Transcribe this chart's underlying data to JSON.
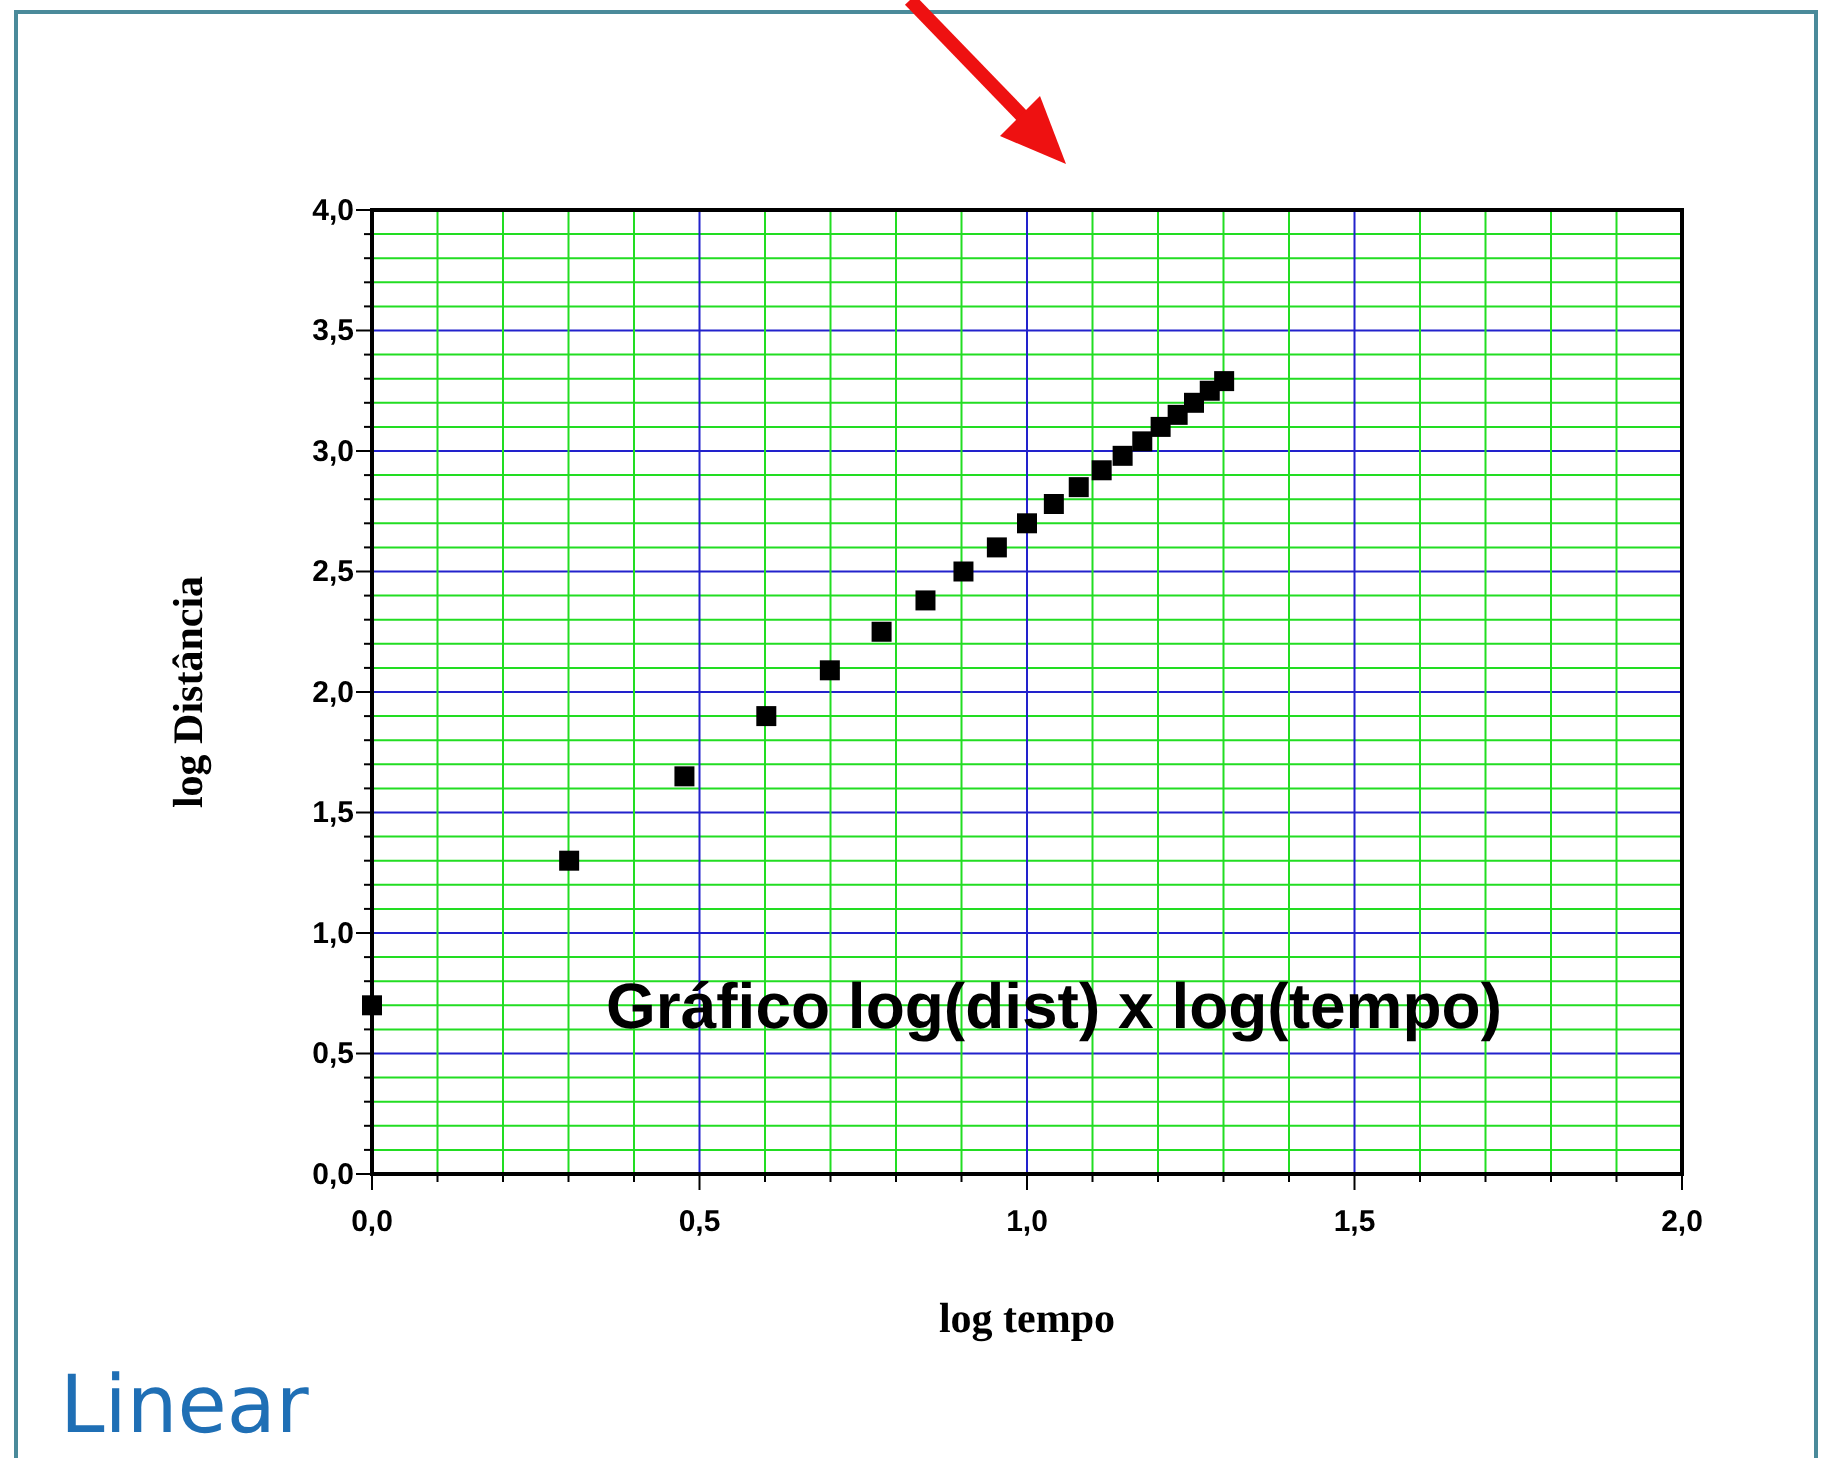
{
  "chart_data": {
    "type": "scatter",
    "xlabel": "log tempo",
    "ylabel": "log Distância",
    "x": [
      0,
      0.301,
      0.477,
      0.602,
      0.699,
      0.778,
      0.845,
      0.903,
      0.954,
      1.0,
      1.041,
      1.079,
      1.114,
      1.146,
      1.176,
      1.204,
      1.23,
      1.255,
      1.279,
      1.301
    ],
    "series": [
      {
        "color": "#000000",
        "values": [
          0.7,
          1.3,
          1.65,
          1.9,
          2.09,
          2.25,
          2.38,
          2.5,
          2.6,
          2.7,
          2.78,
          2.85,
          2.92,
          2.98,
          3.04,
          3.1,
          3.15,
          3.2,
          3.25,
          3.29
        ]
      }
    ],
    "marker": "square",
    "grid": true,
    "xlim": [
      0,
      2
    ],
    "ylim": [
      0,
      4
    ],
    "xticks": [
      {
        "value": 0,
        "label": "0,0"
      },
      {
        "value": 0.1,
        "label": null
      },
      {
        "value": 0.2,
        "label": null
      },
      {
        "value": 0.3,
        "label": null
      },
      {
        "value": 0.4,
        "label": null
      },
      {
        "value": 0.5,
        "label": "0,5"
      },
      {
        "value": 0.6,
        "label": null
      },
      {
        "value": 0.7,
        "label": null
      },
      {
        "value": 0.8,
        "label": null
      },
      {
        "value": 0.9,
        "label": null
      },
      {
        "value": 1,
        "label": "1,0"
      },
      {
        "value": 1.1,
        "label": null
      },
      {
        "value": 1.2,
        "label": null
      },
      {
        "value": 1.3,
        "label": null
      },
      {
        "value": 1.4,
        "label": null
      },
      {
        "value": 1.5,
        "label": "1,5"
      },
      {
        "value": 1.6,
        "label": null
      },
      {
        "value": 1.7,
        "label": null
      },
      {
        "value": 1.8,
        "label": null
      },
      {
        "value": 1.9,
        "label": null
      },
      {
        "value": 2,
        "label": "2,0"
      }
    ],
    "yticks": [
      {
        "value": 0,
        "label": "0,0"
      },
      {
        "value": 0.1,
        "label": null
      },
      {
        "value": 0.2,
        "label": null
      },
      {
        "value": 0.3,
        "label": null
      },
      {
        "value": 0.4,
        "label": null
      },
      {
        "value": 0.5,
        "label": "0,5"
      },
      {
        "value": 0.6,
        "label": null
      },
      {
        "value": 0.7,
        "label": null
      },
      {
        "value": 0.8,
        "label": null
      },
      {
        "value": 0.9,
        "label": null
      },
      {
        "value": 1,
        "label": "1,0"
      },
      {
        "value": 1.1,
        "label": null
      },
      {
        "value": 1.2,
        "label": null
      },
      {
        "value": 1.3,
        "label": null
      },
      {
        "value": 1.4,
        "label": null
      },
      {
        "value": 1.5,
        "label": "1,5"
      },
      {
        "value": 1.6,
        "label": null
      },
      {
        "value": 1.7,
        "label": null
      },
      {
        "value": 1.8,
        "label": null
      },
      {
        "value": 1.9,
        "label": null
      },
      {
        "value": 2,
        "label": "2,0"
      },
      {
        "value": 2.1,
        "label": null
      },
      {
        "value": 2.2,
        "label": null
      },
      {
        "value": 2.3,
        "label": null
      },
      {
        "value": 2.4,
        "label": null
      },
      {
        "value": 2.5,
        "label": "2,5"
      },
      {
        "value": 2.6,
        "label": null
      },
      {
        "value": 2.7,
        "label": null
      },
      {
        "value": 2.8,
        "label": null
      },
      {
        "value": 2.9,
        "label": null
      },
      {
        "value": 3,
        "label": "3,0"
      },
      {
        "value": 3.1,
        "label": null
      },
      {
        "value": 3.2,
        "label": null
      },
      {
        "value": 3.3,
        "label": null
      },
      {
        "value": 3.4,
        "label": null
      },
      {
        "value": 3.5,
        "label": "3,5"
      },
      {
        "value": 3.6,
        "label": null
      },
      {
        "value": 3.7,
        "label": null
      },
      {
        "value": 3.8,
        "label": null
      },
      {
        "value": 3.9,
        "label": null
      },
      {
        "value": 4,
        "label": "4,0"
      }
    ],
    "annotations": [
      "Gráfico log(dist) x log(tempo)",
      "Linear"
    ]
  }
}
